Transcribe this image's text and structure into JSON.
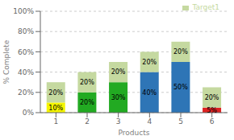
{
  "chart_data": {
    "type": "bar",
    "stacked": true,
    "categories": [
      "1",
      "2",
      "3",
      "4",
      "5",
      "6"
    ],
    "series": [
      {
        "values": [
          10,
          20,
          30,
          40,
          50,
          5
        ],
        "value_labels": [
          "10%",
          "20%",
          "30%",
          "40%",
          "50%",
          "5%"
        ],
        "colors": [
          "#f5f500",
          "#22aa22",
          "#22aa22",
          "#2e75b6",
          "#2e75b6",
          "#dd2222"
        ]
      },
      {
        "name": "Target1",
        "color": "#c5d9a0",
        "values": [
          20,
          20,
          20,
          20,
          20,
          20
        ],
        "value_labels": [
          "20%",
          "20%",
          "20%",
          "20%",
          "20%",
          "20%"
        ]
      }
    ],
    "xlabel": "Products",
    "ylabel": "% Complete",
    "ylim": [
      0,
      100
    ],
    "yticks": [
      {
        "value": 0,
        "label": "0%"
      },
      {
        "value": 20,
        "label": "20%"
      },
      {
        "value": 40,
        "label": "40%"
      },
      {
        "value": 60,
        "label": "60%"
      },
      {
        "value": 80,
        "label": "80%"
      },
      {
        "value": 100,
        "label": "100%"
      }
    ],
    "grid": true,
    "legend": "upper right",
    "data_labels": true
  }
}
